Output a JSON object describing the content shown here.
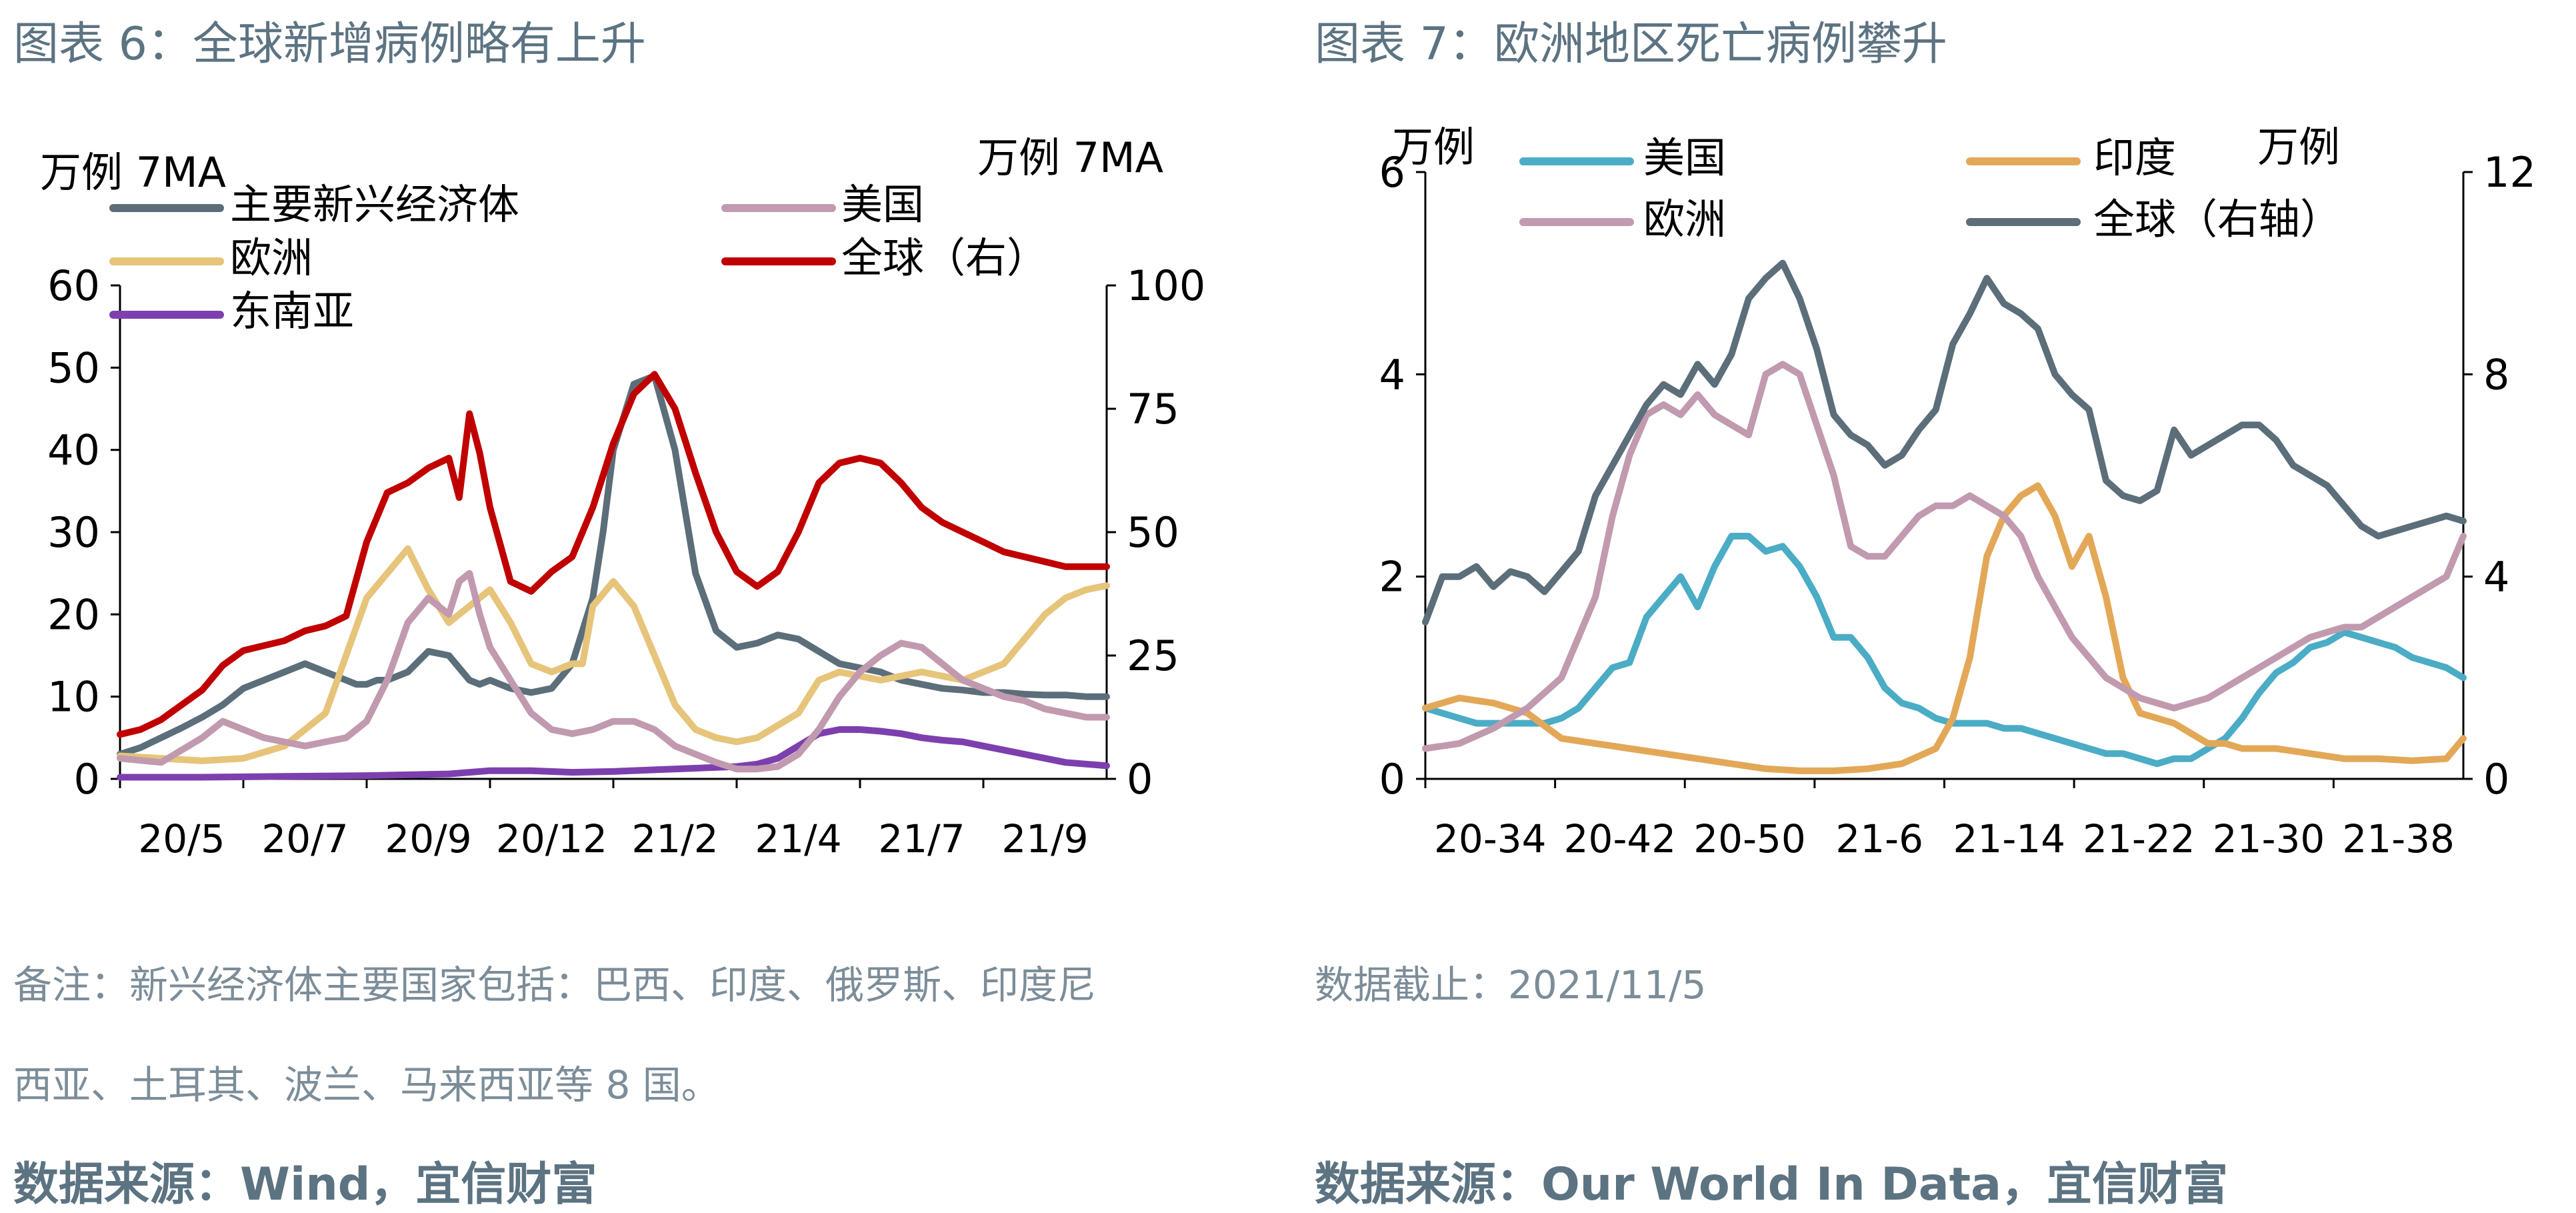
{
  "left": {
    "figure_title": "图表 6：全球新增病例略有上升",
    "note_line1": "备注：新兴经济体主要国家包括：巴西、印度、俄罗斯、印度尼",
    "note_line2": "西亚、土耳其、波兰、马来西亚等 8 国。",
    "source": "数据来源：Wind，宜信财富"
  },
  "right": {
    "figure_title": "图表 7：欧洲地区死亡病例攀升",
    "note": "数据截止：2021/11/5",
    "source": "数据来源：Our World In Data，宜信财富"
  },
  "chart_data": [
    {
      "type": "line",
      "title": "",
      "ylabel": "万例 7MA",
      "y2label": "万例 7MA",
      "ylim": [
        0,
        60
      ],
      "y2lim": [
        0,
        100
      ],
      "yticks": [
        "0",
        "10",
        "20",
        "30",
        "40",
        "50",
        "60"
      ],
      "y2ticks": [
        "0",
        "25",
        "50",
        "75",
        "100"
      ],
      "xticks": [
        "20/5",
        "20/7",
        "20/9",
        "20/12",
        "21/2",
        "21/4",
        "21/7",
        "21/9"
      ],
      "grid": false,
      "legend": "top",
      "series": [
        {
          "name": "主要新兴经济体",
          "axis": "left",
          "color": "#5b6e7a",
          "x": [
            0,
            1,
            2,
            3,
            4,
            5,
            6,
            7,
            8,
            9,
            10,
            11,
            11.5,
            12,
            12.5,
            13,
            14,
            15,
            16,
            16.5,
            17,
            17.5,
            18,
            18.5,
            19,
            20,
            21,
            22,
            23,
            23.5,
            24,
            25,
            26,
            27,
            28,
            29,
            30,
            31,
            32,
            33,
            34,
            35,
            36,
            37,
            38,
            39,
            40,
            41,
            42,
            43,
            44,
            45,
            46,
            47,
            48
          ],
          "values": [
            3,
            3.8,
            5,
            6.2,
            7.5,
            9,
            11,
            12,
            13,
            14,
            13,
            12,
            11.5,
            11.5,
            12,
            12,
            13,
            15.5,
            15,
            13.5,
            12,
            11.5,
            12,
            11.5,
            11,
            10.5,
            11,
            14,
            22,
            30,
            40,
            48,
            49,
            40,
            25,
            18,
            16,
            16.5,
            17.5,
            17,
            15.5,
            14,
            13.5,
            13,
            12,
            11.5,
            11,
            10.8,
            10.5,
            10.5,
            10.3,
            10.2,
            10.2,
            10,
            10
          ]
        },
        {
          "name": "欧洲",
          "axis": "left",
          "color": "#e6c47a",
          "x": [
            0,
            2,
            4,
            6,
            8,
            10,
            12,
            14,
            15,
            16,
            17,
            18,
            19,
            20,
            21,
            22,
            22.5,
            23,
            24,
            25,
            26,
            27,
            28,
            29,
            30,
            31,
            32,
            33,
            34,
            35,
            36,
            37,
            38,
            39,
            40,
            41,
            42,
            43,
            44,
            45,
            46,
            47,
            48
          ],
          "values": [
            2.8,
            2.5,
            2.2,
            2.5,
            4,
            8,
            22,
            28,
            23,
            19,
            21,
            23,
            19,
            14,
            13,
            14,
            14,
            21,
            24,
            21,
            15,
            9,
            6,
            5,
            4.5,
            5,
            6.5,
            8,
            12,
            13,
            12.5,
            12,
            12.5,
            13,
            12.5,
            12,
            13,
            14,
            17,
            20,
            22,
            23,
            23.5
          ]
        },
        {
          "name": "东南亚",
          "axis": "left",
          "color": "#7d3fae",
          "x": [
            0,
            4,
            8,
            12,
            16,
            18,
            20,
            22,
            24,
            26,
            28,
            30,
            31,
            32,
            33,
            34,
            35,
            36,
            37,
            38,
            39,
            40,
            41,
            42,
            43,
            44,
            45,
            46,
            47,
            48
          ],
          "values": [
            0.2,
            0.2,
            0.3,
            0.4,
            0.6,
            1,
            1,
            0.8,
            0.9,
            1.1,
            1.3,
            1.5,
            1.8,
            2.5,
            4,
            5.5,
            6,
            6,
            5.8,
            5.5,
            5,
            4.7,
            4.5,
            4,
            3.5,
            3,
            2.5,
            2,
            1.8,
            1.6
          ]
        },
        {
          "name": "美国",
          "axis": "left",
          "color": "#c19aaf",
          "x": [
            0,
            2,
            4,
            5,
            6,
            7,
            8,
            9,
            10,
            11,
            12,
            13,
            14,
            15,
            16,
            16.5,
            17,
            17.5,
            18,
            19,
            20,
            21,
            22,
            23,
            24,
            25,
            26,
            27,
            28,
            29,
            30,
            31,
            32,
            33,
            34,
            35,
            36,
            37,
            38,
            39,
            40,
            41,
            42,
            43,
            44,
            45,
            46,
            47,
            48
          ],
          "values": [
            2.5,
            2,
            5,
            7,
            6,
            5,
            4.5,
            4,
            4.5,
            5,
            7,
            12,
            19,
            22,
            20,
            24,
            25,
            20,
            16,
            12,
            8,
            6,
            5.5,
            6,
            7,
            7,
            6,
            4,
            3,
            2,
            1.2,
            1.2,
            1.5,
            3,
            6,
            10,
            13,
            15,
            16.5,
            16,
            14,
            12,
            11,
            10,
            9.5,
            8.5,
            8,
            7.5,
            7.5
          ]
        },
        {
          "name": "全球（右）",
          "axis": "right",
          "color": "#c00000",
          "x": [
            0,
            1,
            2,
            3,
            4,
            5,
            6,
            7,
            8,
            9,
            10,
            11,
            12,
            13,
            14,
            15,
            16,
            16.5,
            17,
            17.5,
            18,
            19,
            20,
            21,
            22,
            23,
            24,
            25,
            26,
            27,
            28,
            29,
            30,
            31,
            32,
            33,
            34,
            35,
            36,
            37,
            38,
            39,
            40,
            41,
            42,
            43,
            44,
            45,
            46,
            47,
            48
          ],
          "values": [
            9,
            10,
            12,
            15,
            18,
            23,
            26,
            27,
            28,
            30,
            31,
            33,
            48,
            58,
            60,
            63,
            65,
            57,
            74,
            66,
            55,
            40,
            38,
            42,
            45,
            55,
            68,
            78,
            82,
            75,
            62,
            50,
            42,
            39,
            42,
            50,
            60,
            64,
            65,
            64,
            60,
            55,
            52,
            50,
            48,
            46,
            45,
            44,
            43,
            43,
            43
          ]
        }
      ]
    },
    {
      "type": "line",
      "title": "",
      "ylabel": "万例",
      "y2label": "万例",
      "ylim": [
        0,
        6
      ],
      "y2lim": [
        0,
        12
      ],
      "yticks": [
        "0",
        "2",
        "4",
        "6"
      ],
      "y2ticks": [
        "0",
        "4",
        "8",
        "12"
      ],
      "xticks": [
        "20-34",
        "20-42",
        "20-50",
        "21-6",
        "21-14",
        "21-22",
        "21-30",
        "21-38"
      ],
      "grid": false,
      "legend": "top",
      "series": [
        {
          "name": "美国",
          "axis": "left",
          "color": "#4bacc6",
          "x": [
            0,
            1,
            2,
            3,
            4,
            5,
            6,
            7,
            8,
            9,
            10,
            11,
            12,
            13,
            14,
            15,
            16,
            17,
            18,
            19,
            20,
            21,
            22,
            23,
            24,
            25,
            26,
            27,
            28,
            29,
            30,
            31,
            32,
            33,
            34,
            35,
            36,
            37,
            38,
            39,
            40,
            41,
            42,
            43,
            44,
            45,
            46,
            47,
            48,
            49,
            50,
            51,
            52,
            53,
            54,
            55,
            56,
            57,
            58,
            59,
            60,
            61
          ],
          "values": [
            0.7,
            0.65,
            0.6,
            0.55,
            0.55,
            0.55,
            0.55,
            0.55,
            0.6,
            0.7,
            0.9,
            1.1,
            1.15,
            1.6,
            1.8,
            2.0,
            1.7,
            2.1,
            2.4,
            2.4,
            2.25,
            2.3,
            2.1,
            1.8,
            1.4,
            1.4,
            1.2,
            0.9,
            0.75,
            0.7,
            0.6,
            0.55,
            0.55,
            0.55,
            0.5,
            0.5,
            0.45,
            0.4,
            0.35,
            0.3,
            0.25,
            0.25,
            0.2,
            0.15,
            0.2,
            0.2,
            0.3,
            0.4,
            0.6,
            0.85,
            1.05,
            1.15,
            1.3,
            1.35,
            1.45,
            1.4,
            1.35,
            1.3,
            1.2,
            1.15,
            1.1,
            1.0
          ]
        },
        {
          "name": "印度",
          "axis": "left",
          "color": "#e3a857",
          "x": [
            0,
            2,
            4,
            6,
            8,
            10,
            12,
            14,
            16,
            18,
            20,
            22,
            24,
            26,
            28,
            30,
            31,
            32,
            33,
            34,
            35,
            36,
            37,
            38,
            39,
            40,
            41,
            42,
            43,
            44,
            45,
            46,
            47,
            48,
            50,
            52,
            54,
            56,
            58,
            60,
            61
          ],
          "values": [
            0.7,
            0.8,
            0.75,
            0.65,
            0.4,
            0.35,
            0.3,
            0.25,
            0.2,
            0.15,
            0.1,
            0.08,
            0.08,
            0.1,
            0.15,
            0.3,
            0.6,
            1.2,
            2.2,
            2.6,
            2.8,
            2.9,
            2.6,
            2.1,
            2.4,
            1.8,
            1.0,
            0.65,
            0.6,
            0.55,
            0.45,
            0.35,
            0.35,
            0.3,
            0.3,
            0.25,
            0.2,
            0.2,
            0.18,
            0.2,
            0.4
          ]
        },
        {
          "name": "欧洲",
          "axis": "left",
          "color": "#c19aaf",
          "x": [
            0,
            2,
            4,
            6,
            8,
            10,
            11,
            12,
            13,
            14,
            15,
            16,
            17,
            18,
            19,
            20,
            21,
            22,
            23,
            24,
            25,
            26,
            27,
            28,
            29,
            30,
            31,
            32,
            33,
            34,
            35,
            36,
            37,
            38,
            39,
            40,
            41,
            42,
            43,
            44,
            45,
            46,
            47,
            48,
            49,
            50,
            51,
            52,
            53,
            54,
            55,
            56,
            57,
            58,
            59,
            60,
            61
          ],
          "values": [
            0.3,
            0.35,
            0.5,
            0.7,
            1.0,
            1.8,
            2.6,
            3.2,
            3.6,
            3.7,
            3.6,
            3.8,
            3.6,
            3.5,
            3.4,
            4.0,
            4.1,
            4.0,
            3.5,
            3.0,
            2.3,
            2.2,
            2.2,
            2.4,
            2.6,
            2.7,
            2.7,
            2.8,
            2.7,
            2.6,
            2.4,
            2.0,
            1.7,
            1.4,
            1.2,
            1.0,
            0.9,
            0.8,
            0.75,
            0.7,
            0.75,
            0.8,
            0.9,
            1.0,
            1.1,
            1.2,
            1.3,
            1.4,
            1.45,
            1.5,
            1.5,
            1.6,
            1.7,
            1.8,
            1.9,
            2.0,
            2.4
          ]
        },
        {
          "name": "全球（右轴）",
          "axis": "right",
          "color": "#5b6e7a",
          "x": [
            0,
            1,
            2,
            3,
            4,
            5,
            6,
            7,
            8,
            9,
            10,
            11,
            12,
            13,
            14,
            15,
            16,
            17,
            18,
            19,
            20,
            21,
            22,
            23,
            24,
            25,
            26,
            27,
            28,
            29,
            30,
            31,
            32,
            33,
            34,
            35,
            36,
            37,
            38,
            39,
            40,
            41,
            42,
            43,
            44,
            45,
            46,
            47,
            48,
            49,
            50,
            51,
            52,
            53,
            54,
            55,
            56,
            57,
            58,
            59,
            60,
            61
          ],
          "values": [
            3.1,
            4.0,
            4.0,
            4.2,
            3.8,
            4.1,
            4.0,
            3.7,
            4.1,
            4.5,
            5.6,
            6.2,
            6.8,
            7.4,
            7.8,
            7.6,
            8.2,
            7.8,
            8.4,
            9.5,
            9.9,
            10.2,
            9.5,
            8.5,
            7.2,
            6.8,
            6.6,
            6.2,
            6.4,
            6.9,
            7.3,
            8.6,
            9.2,
            9.9,
            9.4,
            9.2,
            8.9,
            8.0,
            7.6,
            7.3,
            5.9,
            5.6,
            5.5,
            5.7,
            6.9,
            6.4,
            6.6,
            6.8,
            7.0,
            7.0,
            6.7,
            6.2,
            6.0,
            5.8,
            5.4,
            5.0,
            4.8,
            4.9,
            5.0,
            5.1,
            5.2,
            5.1
          ]
        }
      ]
    }
  ]
}
